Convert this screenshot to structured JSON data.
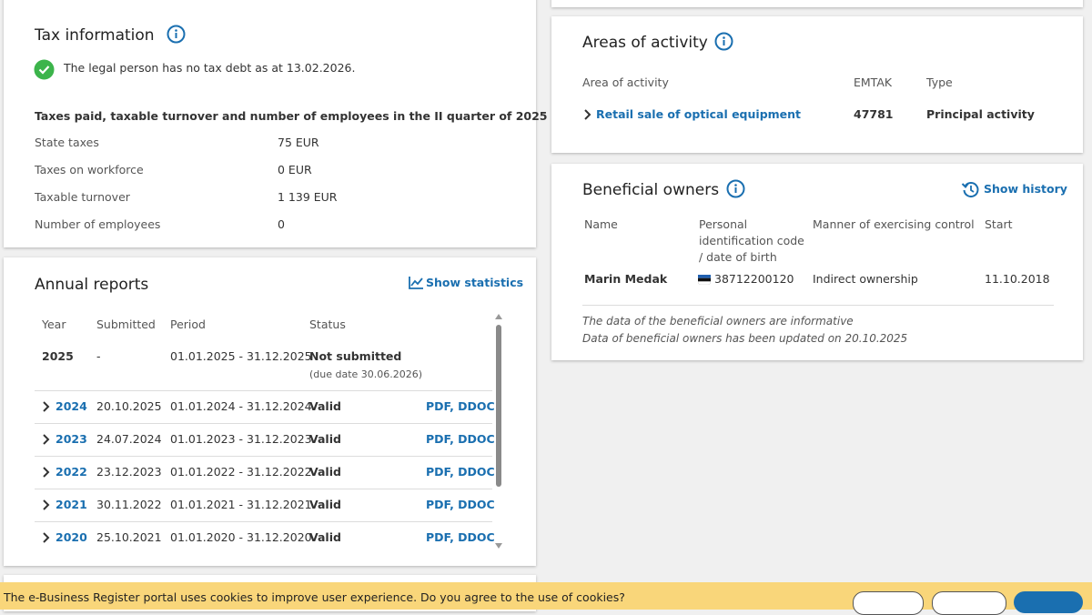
{
  "tax": {
    "title": "Tax information",
    "status": "The legal person has no tax debt as at 13.02.2026.",
    "subtitle": "Taxes paid, taxable turnover and number of employees in the II quarter of 2025",
    "rows": [
      [
        "State taxes",
        "75 EUR"
      ],
      [
        "Taxes on workforce",
        "0 EUR"
      ],
      [
        "Taxable turnover",
        "1 139 EUR"
      ],
      [
        "Number of employees",
        "0"
      ]
    ]
  },
  "annual_reports": {
    "title": "Annual reports",
    "show_statistics": "Show statistics",
    "columns": [
      "Year",
      "Submitted",
      "Period",
      "Status"
    ],
    "rows": [
      {
        "year": "2025",
        "submitted": "-",
        "period": "01.01.2025 - 31.12.2025",
        "status": "Not submitted",
        "note": "(due date 30.06.2026)"
      },
      {
        "year": "2024",
        "submitted": "20.10.2025",
        "period": "01.01.2024 - 31.12.2024",
        "status": "Valid",
        "documents": "PDF, DDOC"
      },
      {
        "year": "2023",
        "submitted": "24.07.2024",
        "period": "01.01.2023 - 31.12.2023",
        "status": "Valid",
        "documents": "PDF, DDOC"
      },
      {
        "year": "2022",
        "submitted": "23.12.2023",
        "period": "01.01.2022 - 31.12.2022",
        "status": "Valid",
        "documents": "PDF, DDOC"
      },
      {
        "year": "2021",
        "submitted": "30.11.2022",
        "period": "01.01.2021 - 31.12.2021",
        "status": "Valid",
        "documents": "PDF, DDOC"
      },
      {
        "year": "2020",
        "submitted": "25.10.2021",
        "period": "01.01.2020 - 31.12.2020",
        "status": "Valid",
        "documents": "PDF, DDOC"
      }
    ]
  },
  "areas": {
    "title": "Areas of activity",
    "columns": [
      "Area of activity",
      "EMTAK",
      "Type"
    ],
    "rows": [
      [
        "Retail sale of optical equipment",
        "47781",
        "Principal activity"
      ]
    ]
  },
  "owners": {
    "title": "Beneficial owners",
    "show_history": "Show history",
    "columns": [
      "Name",
      "Personal identification code / date of birth",
      "Manner of exercising control",
      "Start"
    ],
    "rows": [
      [
        "Marin Medak",
        "38712200120",
        "Indirect ownership",
        "11.10.2018"
      ]
    ],
    "notes": [
      "The data of the beneficial owners are informative",
      "Data of beneficial owners has been updated on 20.10.2025"
    ]
  },
  "cookie": {
    "text": "The e-Business Register portal uses cookies to improve user experience. Do you agree to the use of cookies?"
  }
}
